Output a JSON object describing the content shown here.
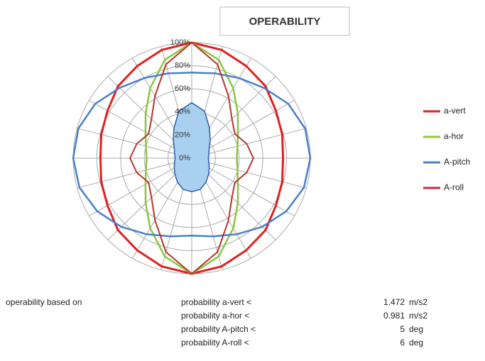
{
  "chart_data": {
    "type": "radar",
    "title": "OPERABILITY",
    "rlim": [
      0,
      100
    ],
    "rticks": [
      {
        "value": 0,
        "label": "0%"
      },
      {
        "value": 20,
        "label": "20%"
      },
      {
        "value": 40,
        "label": "40%"
      },
      {
        "value": 60,
        "label": "60%"
      },
      {
        "value": 80,
        "label": "80%"
      },
      {
        "value": 100,
        "label": "100%"
      }
    ],
    "grid": true,
    "legend": "right",
    "series": [
      {
        "name": null,
        "color": "#2a5caa",
        "fill": "#a9d0ee",
        "values": [
          48,
          42,
          30,
          22,
          17,
          15,
          14,
          15,
          17,
          20,
          24,
          28,
          29,
          28,
          24,
          20,
          17,
          15,
          14,
          15,
          17,
          22,
          30,
          42
        ]
      },
      {
        "name": "a-vert",
        "color": "#e02020",
        "width": 3,
        "values": [
          100,
          97,
          92,
          88,
          82,
          79,
          77,
          79,
          82,
          88,
          92,
          97,
          100,
          97,
          92,
          88,
          82,
          79,
          77,
          79,
          82,
          88,
          92,
          97
        ]
      },
      {
        "name": "a-hor",
        "color": "#8cc63f",
        "width": 2.5,
        "values": [
          100,
          88,
          70,
          55,
          45,
          40,
          38,
          40,
          45,
          55,
          70,
          88,
          100,
          88,
          70,
          55,
          45,
          40,
          38,
          40,
          45,
          55,
          70,
          88
        ]
      },
      {
        "name": "A-pitch",
        "color": "#4a7fc8",
        "width": 2.5,
        "values": [
          74,
          76,
          80,
          86,
          94,
          99,
          100,
          98,
          92,
          84,
          76,
          70,
          67,
          70,
          76,
          84,
          92,
          98,
          100,
          99,
          94,
          86,
          80,
          76
        ]
      },
      {
        "name": "A-roll",
        "color": "#b8342c",
        "width": 2,
        "values": [
          100,
          84,
          62,
          48,
          42,
          48,
          52,
          48,
          42,
          48,
          62,
          84,
          100,
          84,
          62,
          48,
          42,
          48,
          52,
          48,
          42,
          48,
          62,
          84
        ]
      }
    ]
  },
  "footer": {
    "label": "operability based on",
    "rows": [
      [
        "probability a-vert <",
        "1.472",
        "m/s2"
      ],
      [
        "probability a-hor <",
        "0.981",
        "m/s2"
      ],
      [
        "probability A-pitch <",
        "5",
        "deg"
      ],
      [
        "probability A-roll <",
        "6",
        "deg"
      ]
    ]
  }
}
